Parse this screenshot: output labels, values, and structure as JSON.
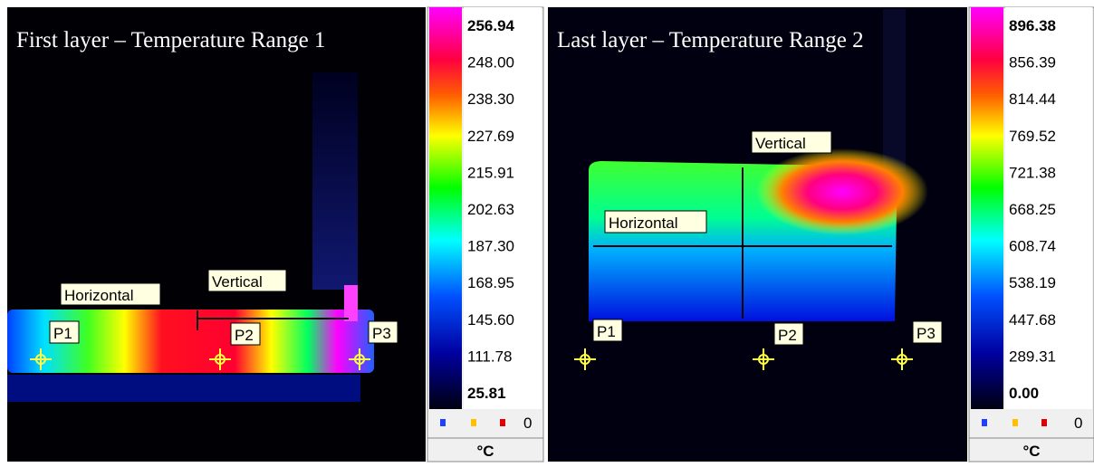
{
  "panels": [
    {
      "title": "First layer – Temperature Range 1",
      "scale": [
        "256.94",
        "248.00",
        "238.30",
        "227.69",
        "215.91",
        "202.63",
        "187.30",
        "168.95",
        "145.60",
        "111.78",
        "25.81"
      ],
      "markers": [
        "P1",
        "P2",
        "P3"
      ],
      "lines": [
        "Horizontal",
        "Vertical"
      ],
      "legend_count": "0",
      "unit": "°C"
    },
    {
      "title": "Last layer – Temperature Range 2",
      "scale": [
        "896.38",
        "856.39",
        "814.44",
        "769.52",
        "721.38",
        "668.25",
        "608.74",
        "538.19",
        "447.68",
        "289.31",
        "0.00"
      ],
      "markers": [
        "P1",
        "P2",
        "P3"
      ],
      "lines": [
        "Horizontal",
        "Vertical"
      ],
      "legend_count": "0",
      "unit": "°C"
    }
  ]
}
